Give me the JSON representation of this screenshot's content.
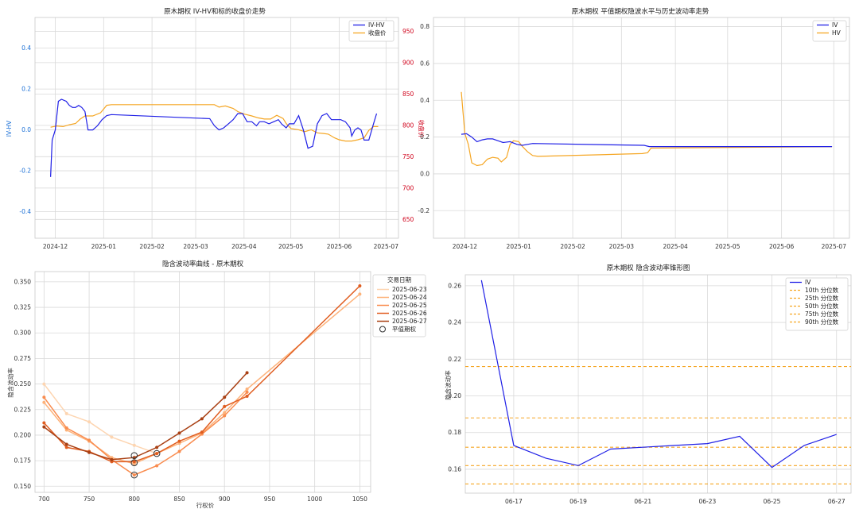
{
  "chart_data": [
    {
      "id": "tl",
      "type": "line",
      "title": "原木期权 IV-HV和标的收盘价走势",
      "ylabel": "IV-HV",
      "y2label": "收盘价",
      "x_ticks": [
        "2024-12",
        "2025-01",
        "2025-02",
        "2025-03",
        "2025-04",
        "2025-05",
        "2025-06",
        "2025-07"
      ],
      "y_ticks": [
        "-0.4",
        "-0.2",
        "0.0",
        "0.2",
        "0.4"
      ],
      "y2_ticks": [
        "650",
        "700",
        "750",
        "800",
        "850",
        "900",
        "950"
      ],
      "ylim": [
        -0.53,
        0.55
      ],
      "y2lim": [
        620,
        972
      ],
      "legend": [
        "IV-HV",
        "收盘价"
      ],
      "colors": {
        "iv_hv": "#1f1fe6",
        "close": "#f5a623"
      },
      "series": [
        {
          "name": "IV-HV",
          "key": "iv_hv",
          "points": [
            [
              "2024-11-28",
              -0.23
            ],
            [
              "2024-11-29",
              -0.05
            ],
            [
              "2024-12-01",
              0.0
            ],
            [
              "2024-12-03",
              0.14
            ],
            [
              "2024-12-05",
              0.15
            ],
            [
              "2024-12-08",
              0.14
            ],
            [
              "2024-12-10",
              0.12
            ],
            [
              "2024-12-12",
              0.11
            ],
            [
              "2024-12-14",
              0.11
            ],
            [
              "2024-12-16",
              0.12
            ],
            [
              "2024-12-18",
              0.11
            ],
            [
              "2024-12-20",
              0.09
            ],
            [
              "2024-12-22",
              0.0
            ],
            [
              "2024-12-25",
              0.0
            ],
            [
              "2024-12-28",
              0.02
            ],
            [
              "2024-12-31",
              0.05
            ],
            [
              "2025-01-03",
              0.07
            ],
            [
              "2025-01-06",
              0.075
            ],
            [
              "2025-03-10",
              0.055
            ],
            [
              "2025-03-13",
              0.02
            ],
            [
              "2025-03-16",
              0.0
            ],
            [
              "2025-03-19",
              0.01
            ],
            [
              "2025-03-22",
              0.03
            ],
            [
              "2025-03-25",
              0.05
            ],
            [
              "2025-03-28",
              0.08
            ],
            [
              "2025-03-31",
              0.08
            ],
            [
              "2025-04-03",
              0.04
            ],
            [
              "2025-04-06",
              0.04
            ],
            [
              "2025-04-09",
              0.02
            ],
            [
              "2025-04-11",
              0.04
            ],
            [
              "2025-04-14",
              0.04
            ],
            [
              "2025-04-17",
              0.03
            ],
            [
              "2025-04-20",
              0.04
            ],
            [
              "2025-04-23",
              0.05
            ],
            [
              "2025-04-25",
              0.03
            ],
            [
              "2025-04-28",
              0.01
            ],
            [
              "2025-04-30",
              0.03
            ],
            [
              "2025-05-03",
              0.03
            ],
            [
              "2025-05-06",
              0.07
            ],
            [
              "2025-05-09",
              0.0
            ],
            [
              "2025-05-12",
              -0.09
            ],
            [
              "2025-05-15",
              -0.08
            ],
            [
              "2025-05-18",
              0.03
            ],
            [
              "2025-05-21",
              0.07
            ],
            [
              "2025-05-24",
              0.08
            ],
            [
              "2025-05-27",
              0.05
            ],
            [
              "2025-05-30",
              0.05
            ],
            [
              "2025-06-02",
              0.05
            ],
            [
              "2025-06-05",
              0.04
            ],
            [
              "2025-06-08",
              0.01
            ],
            [
              "2025-06-09",
              -0.03
            ],
            [
              "2025-06-11",
              0.0
            ],
            [
              "2025-06-13",
              0.01
            ],
            [
              "2025-06-15",
              0.0
            ],
            [
              "2025-06-17",
              -0.05
            ],
            [
              "2025-06-20",
              -0.05
            ],
            [
              "2025-06-23",
              0.03
            ],
            [
              "2025-06-25",
              0.08
            ]
          ]
        },
        {
          "name": "收盘价",
          "key": "close",
          "points": [
            [
              "2024-11-28",
              797
            ],
            [
              "2024-12-02",
              799
            ],
            [
              "2024-12-06",
              798
            ],
            [
              "2024-12-10",
              801
            ],
            [
              "2024-12-14",
              803
            ],
            [
              "2024-12-17",
              810
            ],
            [
              "2024-12-20",
              815
            ],
            [
              "2024-12-25",
              815
            ],
            [
              "2024-12-30",
              820
            ],
            [
              "2025-01-03",
              832
            ],
            [
              "2025-01-06",
              833
            ],
            [
              "2025-03-13",
              833
            ],
            [
              "2025-03-16",
              829
            ],
            [
              "2025-03-20",
              831
            ],
            [
              "2025-03-25",
              827
            ],
            [
              "2025-03-28",
              822
            ],
            [
              "2025-04-01",
              818
            ],
            [
              "2025-04-06",
              815
            ],
            [
              "2025-04-10",
              812
            ],
            [
              "2025-04-14",
              810
            ],
            [
              "2025-04-18",
              810
            ],
            [
              "2025-04-22",
              816
            ],
            [
              "2025-04-26",
              811
            ],
            [
              "2025-04-28",
              803
            ],
            [
              "2025-05-01",
              795
            ],
            [
              "2025-05-06",
              793
            ],
            [
              "2025-05-10",
              790
            ],
            [
              "2025-05-14",
              793
            ],
            [
              "2025-05-18",
              788
            ],
            [
              "2025-05-22",
              787
            ],
            [
              "2025-05-25",
              786
            ],
            [
              "2025-05-29",
              780
            ],
            [
              "2025-06-01",
              777
            ],
            [
              "2025-06-05",
              775
            ],
            [
              "2025-06-09",
              775
            ],
            [
              "2025-06-13",
              777
            ],
            [
              "2025-06-17",
              780
            ],
            [
              "2025-06-20",
              792
            ],
            [
              "2025-06-23",
              798
            ],
            [
              "2025-06-26",
              798
            ]
          ]
        }
      ]
    },
    {
      "id": "tr",
      "type": "line",
      "title": "原木期权 平值期权隐波水平与历史波动率走势",
      "x_ticks": [
        "2024-12",
        "2025-01",
        "2025-02",
        "2025-03",
        "2025-04",
        "2025-05",
        "2025-06",
        "2025-07"
      ],
      "y_ticks": [
        "-0.2",
        "0.0",
        "0.2",
        "0.4",
        "0.6",
        "0.8"
      ],
      "ylim": [
        -0.35,
        0.85
      ],
      "legend": [
        "IV",
        "HV"
      ],
      "colors": {
        "iv": "#1f1fe6",
        "hv": "#f5a623"
      },
      "series": [
        {
          "name": "IV",
          "key": "iv",
          "points": [
            [
              "2024-11-29",
              0.215
            ],
            [
              "2024-12-02",
              0.218
            ],
            [
              "2024-12-05",
              0.2
            ],
            [
              "2024-12-08",
              0.175
            ],
            [
              "2024-12-11",
              0.185
            ],
            [
              "2024-12-14",
              0.19
            ],
            [
              "2024-12-17",
              0.19
            ],
            [
              "2024-12-20",
              0.18
            ],
            [
              "2024-12-23",
              0.17
            ],
            [
              "2024-12-27",
              0.175
            ],
            [
              "2024-12-31",
              0.16
            ],
            [
              "2025-01-03",
              0.155
            ],
            [
              "2025-01-06",
              0.16
            ],
            [
              "2025-01-09",
              0.165
            ],
            [
              "2025-03-14",
              0.155
            ],
            [
              "2025-03-17",
              0.148
            ],
            [
              "2025-06-30",
              0.148
            ]
          ]
        },
        {
          "name": "HV",
          "key": "hv",
          "points": [
            [
              "2024-11-29",
              0.445
            ],
            [
              "2024-12-01",
              0.22
            ],
            [
              "2024-12-03",
              0.16
            ],
            [
              "2024-12-05",
              0.06
            ],
            [
              "2024-12-08",
              0.045
            ],
            [
              "2024-12-11",
              0.05
            ],
            [
              "2024-12-14",
              0.08
            ],
            [
              "2024-12-17",
              0.09
            ],
            [
              "2024-12-20",
              0.085
            ],
            [
              "2024-12-22",
              0.065
            ],
            [
              "2024-12-25",
              0.09
            ],
            [
              "2024-12-27",
              0.16
            ],
            [
              "2024-12-29",
              0.18
            ],
            [
              "2025-01-01",
              0.175
            ],
            [
              "2025-01-03",
              0.15
            ],
            [
              "2025-01-06",
              0.12
            ],
            [
              "2025-01-09",
              0.1
            ],
            [
              "2025-01-12",
              0.095
            ],
            [
              "2025-03-13",
              0.11
            ],
            [
              "2025-03-16",
              0.115
            ],
            [
              "2025-03-18",
              0.14
            ],
            [
              "2025-06-30",
              0.148
            ]
          ]
        }
      ]
    },
    {
      "id": "bl",
      "type": "line",
      "title": "隐含波动率曲线 - 原木期权",
      "xlabel": "行权价",
      "ylabel": "隐含波动率",
      "x_ticks": [
        "700",
        "750",
        "800",
        "850",
        "900",
        "950",
        "1000",
        "1050"
      ],
      "y_ticks": [
        "0.150",
        "0.175",
        "0.200",
        "0.225",
        "0.250",
        "0.275",
        "0.300",
        "0.325",
        "0.350"
      ],
      "xlim": [
        690,
        1062
      ],
      "ylim": [
        0.144,
        0.36
      ],
      "legend_title": "交易日期",
      "legend": [
        "2025-06-23",
        "2025-06-24",
        "2025-06-25",
        "2025-06-26",
        "2025-06-27",
        "平值期权"
      ],
      "series": [
        {
          "name": "2025-06-23",
          "color": "#fdd5b1",
          "points": [
            [
              700,
              0.25
            ],
            [
              725,
              0.221
            ],
            [
              750,
              0.213
            ],
            [
              775,
              0.198
            ],
            [
              800,
              0.19
            ],
            [
              825,
              0.182
            ]
          ]
        },
        {
          "name": "2025-06-24",
          "color": "#fdb27a",
          "points": [
            [
              700,
              0.232
            ],
            [
              725,
              0.205
            ],
            [
              750,
              0.194
            ],
            [
              775,
              0.178
            ],
            [
              800,
              0.172
            ],
            [
              825,
              0.182
            ],
            [
              850,
              0.192
            ],
            [
              875,
              0.202
            ],
            [
              900,
              0.222
            ],
            [
              925,
              0.245
            ],
            [
              1050,
              0.338
            ]
          ]
        },
        {
          "name": "2025-06-25",
          "color": "#f98c4f",
          "points": [
            [
              700,
              0.237
            ],
            [
              725,
              0.207
            ],
            [
              750,
              0.195
            ],
            [
              775,
              0.176
            ],
            [
              800,
              0.161
            ],
            [
              825,
              0.17
            ],
            [
              850,
              0.184
            ],
            [
              875,
              0.201
            ],
            [
              900,
              0.219
            ],
            [
              925,
              0.242
            ]
          ]
        },
        {
          "name": "2025-06-26",
          "color": "#e05d20",
          "points": [
            [
              700,
              0.212
            ],
            [
              725,
              0.188
            ],
            [
              750,
              0.184
            ],
            [
              775,
              0.174
            ],
            [
              800,
              0.174
            ],
            [
              825,
              0.182
            ],
            [
              850,
              0.194
            ],
            [
              875,
              0.203
            ],
            [
              900,
              0.228
            ],
            [
              925,
              0.238
            ],
            [
              1050,
              0.346
            ]
          ]
        },
        {
          "name": "2025-06-27",
          "color": "#a94014",
          "points": [
            [
              700,
              0.208
            ],
            [
              725,
              0.191
            ],
            [
              750,
              0.183
            ],
            [
              775,
              0.176
            ],
            [
              800,
              0.178
            ],
            [
              825,
              0.188
            ],
            [
              850,
              0.202
            ],
            [
              875,
              0.216
            ],
            [
              900,
              0.237
            ],
            [
              925,
              0.261
            ]
          ]
        }
      ],
      "atm_points": [
        [
          800,
          0.18
        ],
        [
          800,
          0.173
        ],
        [
          800,
          0.161
        ],
        [
          825,
          0.182
        ]
      ]
    },
    {
      "id": "br",
      "type": "line",
      "title": "原木期权 隐含波动率锥形图",
      "ylabel": "隐含波动率",
      "x_ticks": [
        "06-17",
        "06-19",
        "06-21",
        "06-23",
        "06-25",
        "06-27"
      ],
      "y_ticks": [
        "0.16",
        "0.18",
        "0.20",
        "0.22",
        "0.24",
        "0.26"
      ],
      "ylim": [
        0.147,
        0.266
      ],
      "legend": [
        "IV",
        "10th 分位数",
        "25th 分位数",
        "50th 分位数",
        "75th 分位数",
        "90th 分位数"
      ],
      "colors": {
        "iv": "#1f1fe6",
        "quantile": "#f5a623"
      },
      "iv_points": [
        [
          "06-16",
          0.263
        ],
        [
          "06-17",
          0.173
        ],
        [
          "06-18",
          0.166
        ],
        [
          "06-19",
          0.162
        ],
        [
          "06-20",
          0.171
        ],
        [
          "06-21",
          0.172
        ],
        [
          "06-22",
          0.173
        ],
        [
          "06-23",
          0.174
        ],
        [
          "06-24",
          0.178
        ],
        [
          "06-25",
          0.161
        ],
        [
          "06-26",
          0.173
        ],
        [
          "06-27",
          0.179
        ]
      ],
      "quantiles": [
        0.152,
        0.162,
        0.172,
        0.188,
        0.216
      ]
    }
  ]
}
